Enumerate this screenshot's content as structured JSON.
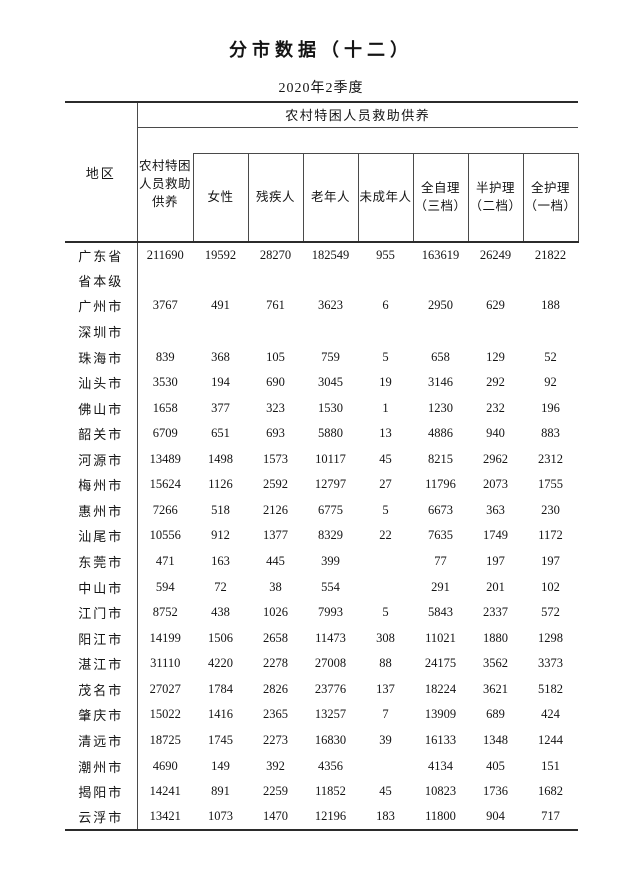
{
  "page": {
    "title": "分市数据（十二）",
    "subtitle": "2020年2季度"
  },
  "table": {
    "corner_header": "地区",
    "group_header": "农村特困人员救助供养",
    "columns": [
      "农村特困\n人员救助\n供养",
      "女性",
      "残疾人",
      "老年人",
      "未成年人",
      "全自理\n（三档）",
      "半护理\n（二档）",
      "全护理\n（一档）"
    ],
    "rows": [
      {
        "region": "广东省",
        "values": [
          "211690",
          "19592",
          "28270",
          "182549",
          "955",
          "163619",
          "26249",
          "21822"
        ]
      },
      {
        "region": "省本级",
        "values": [
          "",
          "",
          "",
          "",
          "",
          "",
          "",
          ""
        ]
      },
      {
        "region": "广州市",
        "values": [
          "3767",
          "491",
          "761",
          "3623",
          "6",
          "2950",
          "629",
          "188"
        ]
      },
      {
        "region": "深圳市",
        "values": [
          "",
          "",
          "",
          "",
          "",
          "",
          "",
          ""
        ]
      },
      {
        "region": "珠海市",
        "values": [
          "839",
          "368",
          "105",
          "759",
          "5",
          "658",
          "129",
          "52"
        ]
      },
      {
        "region": "汕头市",
        "values": [
          "3530",
          "194",
          "690",
          "3045",
          "19",
          "3146",
          "292",
          "92"
        ]
      },
      {
        "region": "佛山市",
        "values": [
          "1658",
          "377",
          "323",
          "1530",
          "1",
          "1230",
          "232",
          "196"
        ]
      },
      {
        "region": "韶关市",
        "values": [
          "6709",
          "651",
          "693",
          "5880",
          "13",
          "4886",
          "940",
          "883"
        ]
      },
      {
        "region": "河源市",
        "values": [
          "13489",
          "1498",
          "1573",
          "10117",
          "45",
          "8215",
          "2962",
          "2312"
        ]
      },
      {
        "region": "梅州市",
        "values": [
          "15624",
          "1126",
          "2592",
          "12797",
          "27",
          "11796",
          "2073",
          "1755"
        ]
      },
      {
        "region": "惠州市",
        "values": [
          "7266",
          "518",
          "2126",
          "6775",
          "5",
          "6673",
          "363",
          "230"
        ]
      },
      {
        "region": "汕尾市",
        "values": [
          "10556",
          "912",
          "1377",
          "8329",
          "22",
          "7635",
          "1749",
          "1172"
        ]
      },
      {
        "region": "东莞市",
        "values": [
          "471",
          "163",
          "445",
          "399",
          "",
          "77",
          "197",
          "197"
        ]
      },
      {
        "region": "中山市",
        "values": [
          "594",
          "72",
          "38",
          "554",
          "",
          "291",
          "201",
          "102"
        ]
      },
      {
        "region": "江门市",
        "values": [
          "8752",
          "438",
          "1026",
          "7993",
          "5",
          "5843",
          "2337",
          "572"
        ]
      },
      {
        "region": "阳江市",
        "values": [
          "14199",
          "1506",
          "2658",
          "11473",
          "308",
          "11021",
          "1880",
          "1298"
        ]
      },
      {
        "region": "湛江市",
        "values": [
          "31110",
          "4220",
          "2278",
          "27008",
          "88",
          "24175",
          "3562",
          "3373"
        ]
      },
      {
        "region": "茂名市",
        "values": [
          "27027",
          "1784",
          "2826",
          "23776",
          "137",
          "18224",
          "3621",
          "5182"
        ]
      },
      {
        "region": "肇庆市",
        "values": [
          "15022",
          "1416",
          "2365",
          "13257",
          "7",
          "13909",
          "689",
          "424"
        ]
      },
      {
        "region": "清远市",
        "values": [
          "18725",
          "1745",
          "2273",
          "16830",
          "39",
          "16133",
          "1348",
          "1244"
        ]
      },
      {
        "region": "潮州市",
        "values": [
          "4690",
          "149",
          "392",
          "4356",
          "",
          "4134",
          "405",
          "151"
        ]
      },
      {
        "region": "揭阳市",
        "values": [
          "14241",
          "891",
          "2259",
          "11852",
          "45",
          "10823",
          "1736",
          "1682"
        ]
      },
      {
        "region": "云浮市",
        "values": [
          "13421",
          "1073",
          "1470",
          "12196",
          "183",
          "11800",
          "904",
          "717"
        ]
      }
    ]
  }
}
